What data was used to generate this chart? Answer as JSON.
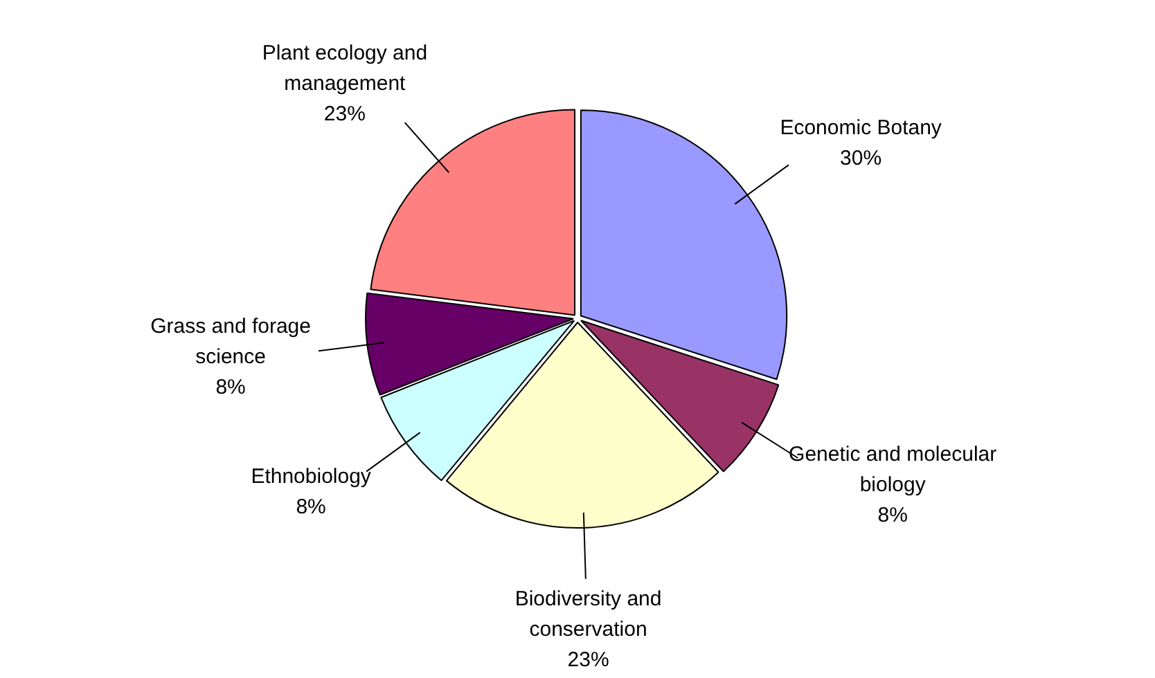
{
  "chart_data": {
    "type": "pie",
    "categories": [
      "Economic Botany",
      "Genetic and molecular biology",
      "Biodiversity and conservation",
      "Ethnobiology",
      "Grass and forage science",
      "Plant ecology and management"
    ],
    "values": [
      30,
      8,
      23,
      8,
      8,
      23
    ],
    "value_labels": [
      "30%",
      "8%",
      "23%",
      "8%",
      "8%",
      "23%"
    ],
    "colors": [
      "#9999ff",
      "#993366",
      "#ffffcc",
      "#ccffff",
      "#660066",
      "#ff8080"
    ],
    "legend": false
  }
}
